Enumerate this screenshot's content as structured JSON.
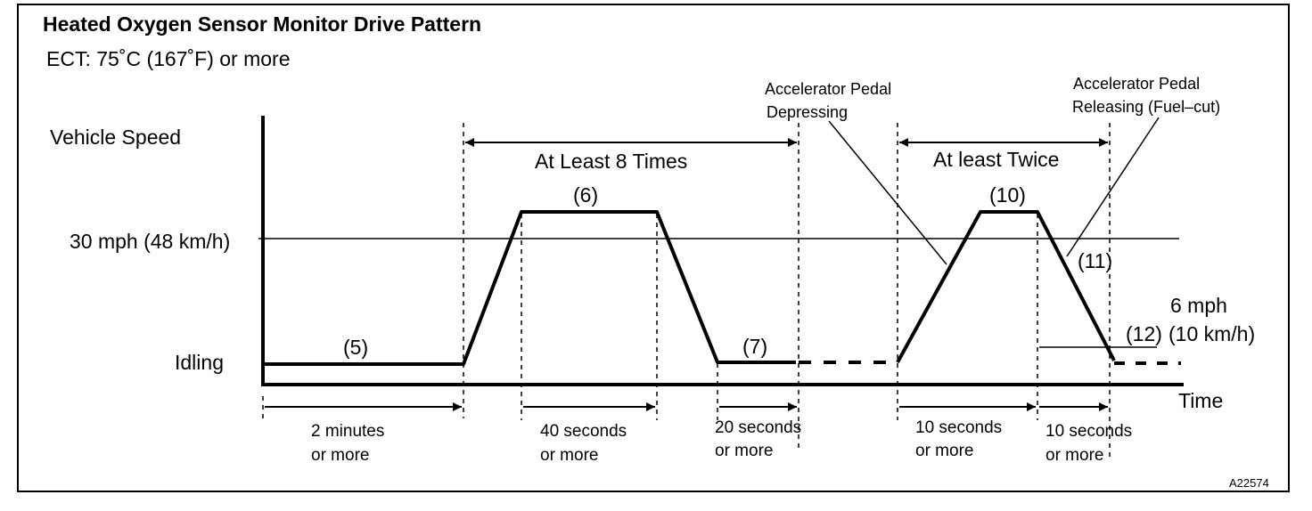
{
  "title": "Heated Oxygen Sensor Monitor Drive Pattern",
  "condition": "ECT: 75˚C (167˚F) or more",
  "axis": {
    "y_label": "Vehicle Speed",
    "x_label": "Time",
    "speed_30": "30 mph (48 km/h)",
    "idling": "Idling"
  },
  "steps": {
    "s5": "(5)",
    "s6": "(6)",
    "s7": "(7)",
    "s10": "(10)",
    "s11": "(11)",
    "s12": "(12)"
  },
  "repeats": {
    "at_least_8": "At Least 8 Times",
    "at_least_twice": "At least Twice"
  },
  "annotations": {
    "depress_line1": "Accelerator Pedal",
    "depress_line2": "Depressing",
    "release_line1": "Accelerator Pedal",
    "release_line2": "Releasing (Fuel–cut)",
    "mph6_line1": "6 mph",
    "mph6_line2": "(10 km/h)"
  },
  "durations": [
    {
      "line1": "2 minutes",
      "line2": "or more"
    },
    {
      "line1": "40 seconds",
      "line2": "or more"
    },
    {
      "line1": "20 seconds",
      "line2": "or more"
    },
    {
      "line1": "10 seconds",
      "line2": "or more"
    },
    {
      "line1": "10 seconds",
      "line2": "or more"
    }
  ],
  "figure_id": "A22574"
}
